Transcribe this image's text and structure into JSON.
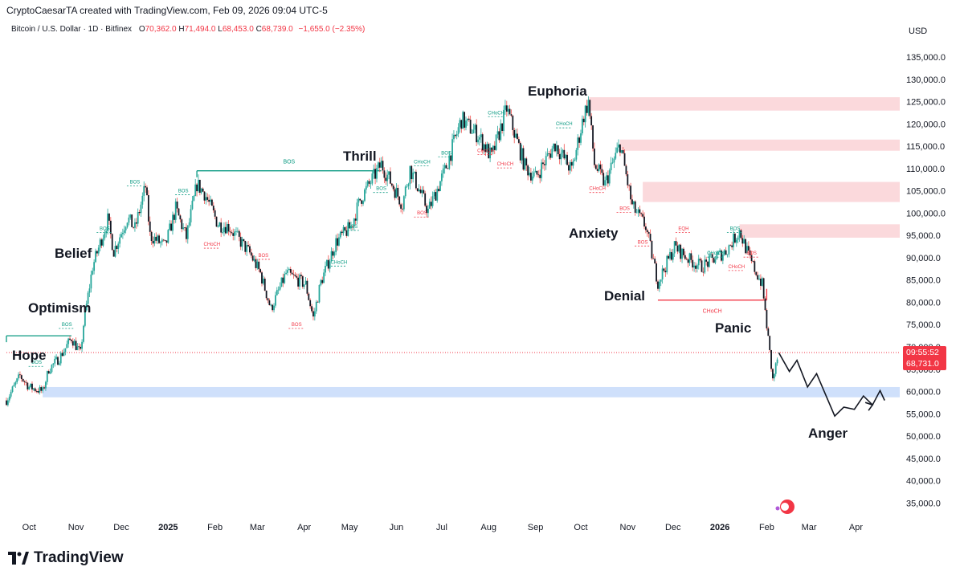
{
  "header": {
    "attribution": "CryptoCaesarTA created with TradingView.com, Feb 09, 2026 09:04 UTC-5"
  },
  "symbol": {
    "name": "Bitcoin / U.S. Dollar · 1D · Bitfinex",
    "open_label": "O",
    "open": "70,362.0",
    "high_label": "H",
    "high": "71,494.0",
    "low_label": "L",
    "low": "68,453.0",
    "close_label": "C",
    "close": "68,739.0",
    "change": "−1,655.0 (−2.35%)"
  },
  "currency": "USD",
  "price_tag": {
    "countdown": "09:55:52",
    "price": "68,731.0",
    "color": "#f23645"
  },
  "footer": {
    "brand": "TradingView"
  },
  "colors": {
    "up": "#26a69a",
    "down": "#ef5350",
    "candle_body": "#131722",
    "smc_green": "#089981",
    "smc_red": "#f23645",
    "supply_zone": "#fbd9dc",
    "support_zone": "#cfe0fb"
  },
  "chart_data": {
    "type": "line",
    "title": "",
    "y_axis": {
      "min": 32000,
      "max": 137000,
      "ticks": [
        "35,000.0",
        "40,000.0",
        "45,000.0",
        "50,000.0",
        "55,000.0",
        "60,000.0",
        "65,000.0",
        "70,000.0",
        "75,000.0",
        "80,000.0",
        "85,000.0",
        "90,000.0",
        "95,000.0",
        "100,000.0",
        "105,000.0",
        "110,000.0",
        "115,000.0",
        "120,000.0",
        "125,000.0",
        "130,000.0",
        "135,000.0"
      ]
    },
    "x_axis": {
      "start": "2024-09-16",
      "end": "2026-04-30",
      "ticks": [
        {
          "label": "Oct",
          "date": "2024-10-01",
          "bold": false
        },
        {
          "label": "Nov",
          "date": "2024-11-01",
          "bold": false
        },
        {
          "label": "Dec",
          "date": "2024-12-01",
          "bold": false
        },
        {
          "label": "2025",
          "date": "2025-01-01",
          "bold": true
        },
        {
          "label": "Feb",
          "date": "2025-02-01",
          "bold": false
        },
        {
          "label": "Mar",
          "date": "2025-03-01",
          "bold": false
        },
        {
          "label": "Apr",
          "date": "2025-04-01",
          "bold": false
        },
        {
          "label": "May",
          "date": "2025-05-01",
          "bold": false
        },
        {
          "label": "Jun",
          "date": "2025-06-01",
          "bold": false
        },
        {
          "label": "Jul",
          "date": "2025-07-01",
          "bold": false
        },
        {
          "label": "Aug",
          "date": "2025-08-01",
          "bold": false
        },
        {
          "label": "Sep",
          "date": "2025-09-01",
          "bold": false
        },
        {
          "label": "Oct",
          "date": "2025-10-01",
          "bold": false
        },
        {
          "label": "Nov",
          "date": "2025-11-01",
          "bold": false
        },
        {
          "label": "Dec",
          "date": "2025-12-01",
          "bold": false
        },
        {
          "label": "2026",
          "date": "2026-01-01",
          "bold": true
        },
        {
          "label": "Feb",
          "date": "2026-02-01",
          "bold": false
        },
        {
          "label": "Mar",
          "date": "2026-03-01",
          "bold": false
        },
        {
          "label": "Apr",
          "date": "2026-04-01",
          "bold": false
        }
      ]
    },
    "series": [
      {
        "name": "BTCUSD",
        "points": [
          [
            "2024-09-16",
            58000
          ],
          [
            "2024-09-25",
            63500
          ],
          [
            "2024-10-01",
            61000
          ],
          [
            "2024-10-10",
            60000
          ],
          [
            "2024-10-14",
            65000
          ],
          [
            "2024-10-21",
            67500
          ],
          [
            "2024-10-29",
            72000
          ],
          [
            "2024-11-04",
            68500
          ],
          [
            "2024-11-06",
            75000
          ],
          [
            "2024-11-12",
            88000
          ],
          [
            "2024-11-22",
            98500
          ],
          [
            "2024-11-26",
            91500
          ],
          [
            "2024-12-05",
            99000
          ],
          [
            "2024-12-10",
            96500
          ],
          [
            "2024-12-17",
            106000
          ],
          [
            "2024-12-20",
            95000
          ],
          [
            "2024-12-30",
            92500
          ],
          [
            "2025-01-06",
            101000
          ],
          [
            "2025-01-13",
            94500
          ],
          [
            "2025-01-20",
            106500
          ],
          [
            "2025-01-25",
            104500
          ],
          [
            "2025-02-03",
            97500
          ],
          [
            "2025-02-10",
            97000
          ],
          [
            "2025-02-24",
            91000
          ],
          [
            "2025-03-03",
            86500
          ],
          [
            "2025-03-10",
            78500
          ],
          [
            "2025-03-20",
            86500
          ],
          [
            "2025-04-02",
            84000
          ],
          [
            "2025-04-07",
            76500
          ],
          [
            "2025-04-12",
            84500
          ],
          [
            "2025-04-22",
            93500
          ],
          [
            "2025-05-02",
            97000
          ],
          [
            "2025-05-08",
            103000
          ],
          [
            "2025-05-22",
            111000
          ],
          [
            "2025-06-05",
            102000
          ],
          [
            "2025-06-10",
            110000
          ],
          [
            "2025-06-22",
            100500
          ],
          [
            "2025-07-03",
            109500
          ],
          [
            "2025-07-14",
            121000
          ],
          [
            "2025-07-25",
            117500
          ],
          [
            "2025-08-03",
            112500
          ],
          [
            "2025-08-13",
            123500
          ],
          [
            "2025-08-25",
            110500
          ],
          [
            "2025-09-01",
            108000
          ],
          [
            "2025-09-14",
            115500
          ],
          [
            "2025-09-25",
            109500
          ],
          [
            "2025-10-03",
            122000
          ],
          [
            "2025-10-06",
            125000
          ],
          [
            "2025-10-10",
            111000
          ],
          [
            "2025-10-17",
            106500
          ],
          [
            "2025-10-27",
            115500
          ],
          [
            "2025-11-04",
            101500
          ],
          [
            "2025-11-13",
            97000
          ],
          [
            "2025-11-21",
            84500
          ],
          [
            "2025-12-02",
            92500
          ],
          [
            "2025-12-12",
            89500
          ],
          [
            "2025-12-20",
            88000
          ],
          [
            "2026-01-05",
            91500
          ],
          [
            "2026-01-14",
            96000
          ],
          [
            "2026-01-21",
            89500
          ],
          [
            "2026-01-29",
            84000
          ],
          [
            "2026-02-05",
            62500
          ],
          [
            "2026-02-09",
            68739
          ]
        ]
      },
      {
        "name": "projection",
        "points": [
          [
            "2026-02-09",
            68700
          ],
          [
            "2026-02-16",
            64500
          ],
          [
            "2026-02-21",
            67000
          ],
          [
            "2026-02-28",
            61000
          ],
          [
            "2026-03-06",
            64000
          ],
          [
            "2026-03-18",
            54500
          ],
          [
            "2026-03-24",
            56500
          ],
          [
            "2026-03-31",
            56000
          ],
          [
            "2026-04-06",
            59000
          ],
          [
            "2026-04-12",
            57000
          ],
          [
            "2026-04-17",
            60200
          ],
          [
            "2026-04-20",
            58000
          ]
        ]
      }
    ],
    "phases": [
      {
        "label": "Hope"
      },
      {
        "label": "Optimism"
      },
      {
        "label": "Belief"
      },
      {
        "label": "Thrill"
      },
      {
        "label": "Euphoria"
      },
      {
        "label": "Anxiety"
      },
      {
        "label": "Denial"
      },
      {
        "label": "Panic"
      },
      {
        "label": "Anger"
      }
    ],
    "zones": [
      {
        "type": "supply",
        "from": 123000,
        "to": 126000,
        "start": "2025-10-06"
      },
      {
        "type": "supply",
        "from": 114000,
        "to": 116500,
        "start": "2025-10-27"
      },
      {
        "type": "supply",
        "from": 102500,
        "to": 107000,
        "start": "2025-11-11"
      },
      {
        "type": "supply",
        "from": 94500,
        "to": 97500,
        "start": "2026-01-14"
      },
      {
        "type": "support",
        "from": 58700,
        "to": 61000,
        "start": "2024-10-10"
      }
    ],
    "levels": [
      {
        "label": "BOS",
        "price": 109500,
        "start": "2025-01-20",
        "end": "2025-05-22"
      },
      {
        "label": "CHoCH",
        "price": 80500,
        "start": "2025-11-21",
        "end": "2026-02-01"
      },
      {
        "label": "",
        "price": 72500,
        "start": "2024-09-16",
        "end": "2024-10-29"
      }
    ],
    "smc_labels": [
      {
        "text": "BOS",
        "date": "2024-10-06",
        "price": 66000,
        "color": "green"
      },
      {
        "text": "BOS",
        "date": "2024-10-26",
        "price": 74500,
        "color": "green"
      },
      {
        "text": "BOS",
        "date": "2024-11-20",
        "price": 96000,
        "color": "green"
      },
      {
        "text": "BOS",
        "date": "2024-12-10",
        "price": 106500,
        "color": "green"
      },
      {
        "text": "BOS",
        "date": "2025-01-11",
        "price": 104500,
        "color": "green"
      },
      {
        "text": "CHoCH",
        "date": "2025-01-30",
        "price": 92500,
        "color": "red"
      },
      {
        "text": "BOS",
        "date": "2025-03-05",
        "price": 90000,
        "color": "red"
      },
      {
        "text": "BOS",
        "date": "2025-03-27",
        "price": 74500,
        "color": "red"
      },
      {
        "text": "CHoCH",
        "date": "2025-04-24",
        "price": 88500,
        "color": "green"
      },
      {
        "text": "BOS",
        "date": "2025-05-03",
        "price": 96500,
        "color": "green"
      },
      {
        "text": "BOS",
        "date": "2025-05-22",
        "price": 105000,
        "color": "green"
      },
      {
        "text": "CHoCH",
        "date": "2025-06-18",
        "price": 111000,
        "color": "green"
      },
      {
        "text": "BOS",
        "date": "2025-06-18",
        "price": 99500,
        "color": "red"
      },
      {
        "text": "BOS",
        "date": "2025-07-04",
        "price": 113000,
        "color": "green"
      },
      {
        "text": "CHoCH",
        "date": "2025-07-30",
        "price": 113500,
        "color": "red"
      },
      {
        "text": "CHoCH",
        "date": "2025-08-06",
        "price": 122000,
        "color": "green"
      },
      {
        "text": "CHoCH",
        "date": "2025-08-12",
        "price": 110500,
        "color": "red"
      },
      {
        "text": "CHoCH",
        "date": "2025-09-20",
        "price": 119500,
        "color": "green"
      },
      {
        "text": "CHoCH",
        "date": "2025-10-12",
        "price": 105000,
        "color": "red"
      },
      {
        "text": "BOS",
        "date": "2025-10-30",
        "price": 100500,
        "color": "red"
      },
      {
        "text": "BOS",
        "date": "2025-11-11",
        "price": 93000,
        "color": "red"
      },
      {
        "text": "EQH",
        "date": "2025-12-08",
        "price": 96000,
        "color": "red"
      },
      {
        "text": "CHoCH",
        "date": "2025-12-29",
        "price": 90500,
        "color": "green"
      },
      {
        "text": "BOS",
        "date": "2026-01-11",
        "price": 96000,
        "color": "green"
      },
      {
        "text": "CHoCH",
        "date": "2026-01-12",
        "price": 87500,
        "color": "red"
      },
      {
        "text": "BOS",
        "date": "2026-01-22",
        "price": 90500,
        "color": "red"
      }
    ]
  }
}
